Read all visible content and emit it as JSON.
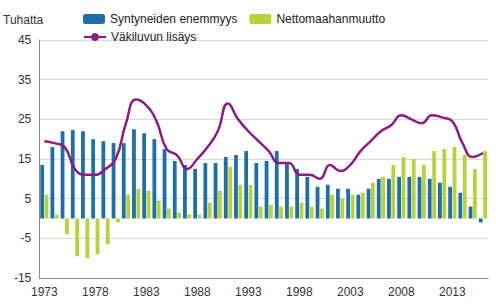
{
  "chart_data": {
    "type": "bar",
    "y_label": "Tuhatta",
    "categories": [
      "1973",
      null,
      null,
      null,
      null,
      "1978",
      null,
      null,
      null,
      null,
      "1983",
      null,
      null,
      null,
      null,
      "1988",
      null,
      null,
      null,
      null,
      "1993",
      null,
      null,
      null,
      null,
      "1998",
      null,
      null,
      null,
      null,
      "2003",
      null,
      null,
      null,
      null,
      "2008",
      null,
      null,
      null,
      null,
      "2013",
      null,
      null,
      null
    ],
    "series": [
      {
        "name": "Syntyneiden enemmyys",
        "type": "bar",
        "color": "#1f6ea8",
        "values": [
          13.5,
          18,
          22,
          22.3,
          22,
          20,
          19.5,
          19,
          19,
          22.5,
          21.5,
          20,
          17.5,
          14.5,
          13.5,
          12.5,
          14,
          14,
          15.5,
          16,
          17,
          14,
          14.5,
          17,
          14,
          12.5,
          10.5,
          8,
          8.5,
          7.5,
          7.5,
          6,
          7.5,
          10,
          10,
          10.5,
          10.5,
          10.5,
          10,
          9,
          8,
          6.5,
          3,
          -1
        ]
      },
      {
        "name": "Nettomaahanmuutto",
        "type": "bar",
        "color": "#b6d33c",
        "values": [
          6,
          1,
          -4,
          -9.5,
          -10,
          -9,
          -6.5,
          -1,
          6,
          7.5,
          7,
          4.5,
          2.5,
          1.5,
          1,
          1,
          4,
          7,
          13,
          8.5,
          8.5,
          3,
          3.5,
          3,
          3,
          4,
          3,
          2.5,
          6,
          5,
          6,
          6.5,
          9,
          10.5,
          13.5,
          15.5,
          15,
          13.5,
          17,
          17.5,
          18,
          16,
          12.5,
          17
        ]
      },
      {
        "name": "Väkiluvun lisäys",
        "type": "line",
        "color": "#8c1d7e",
        "values": [
          19.5,
          19,
          18,
          12.5,
          11,
          11,
          12.5,
          15,
          24,
          30,
          28.5,
          24.5,
          17.5,
          16,
          12.5,
          15,
          18,
          22,
          29,
          25,
          22,
          19.5,
          17,
          14,
          14,
          11,
          11,
          10,
          13.5,
          12,
          13.5,
          17,
          19.5,
          22,
          23.5,
          26,
          25,
          24,
          26,
          25.5,
          24.5,
          19,
          15.5,
          16.5
        ]
      }
    ],
    "ylim": [
      -15,
      45
    ],
    "yticks": [
      -15,
      -5,
      5,
      15,
      25,
      35,
      45
    ],
    "grid": true,
    "legend": "top"
  }
}
